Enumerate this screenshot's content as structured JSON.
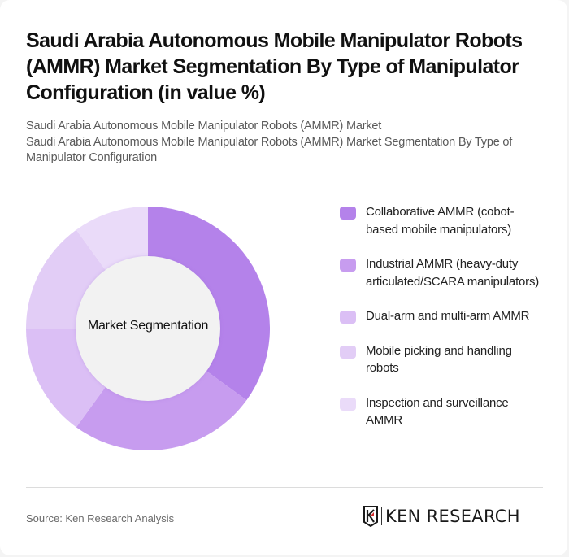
{
  "header": {
    "title": "Saudi Arabia Autonomous Mobile Manipulator Robots (AMMR) Market Segmentation By Type of Manipulator Configuration (in value %)",
    "subtitle_line1": "Saudi Arabia Autonomous Mobile Manipulator Robots (AMMR) Market",
    "subtitle_line2": "Saudi Arabia Autonomous Mobile Manipulator Robots (AMMR) Market Segmentation By Type of Manipulator Configuration"
  },
  "chart_data": {
    "type": "pie",
    "variant": "donut",
    "title": "Saudi Arabia Autonomous Mobile Manipulator Robots (AMMR) Market Segmentation By Type of Manipulator Configuration (in value %)",
    "center_label": "Market Segmentation",
    "categories": [
      "Collaborative AMMR (cobot-based mobile manipulators)",
      "Industrial AMMR (heavy-duty articulated/SCARA manipulators)",
      "Dual-arm and multi-arm AMMR",
      "Mobile picking and handling robots",
      "Inspection and surveillance AMMR"
    ],
    "values": [
      35,
      25,
      15,
      15,
      10
    ],
    "unit": "%",
    "colors": [
      "#b482ea",
      "#c79cef",
      "#dbbff5",
      "#e2cdf6",
      "#eadbf9"
    ],
    "legend_position": "right",
    "start_angle": "12 o'clock, clockwise"
  },
  "legend": {
    "items": [
      {
        "label": "Collaborative AMMR (cobot-based mobile manipulators)",
        "color": "#b482ea"
      },
      {
        "label": "Industrial AMMR (heavy-duty articulated/SCARA manipulators)",
        "color": "#c79cef"
      },
      {
        "label": "Dual-arm and multi-arm AMMR",
        "color": "#dbbff5"
      },
      {
        "label": "Mobile picking and handling robots",
        "color": "#e2cdf6"
      },
      {
        "label": "Inspection and surveillance AMMR",
        "color": "#eadbf9"
      }
    ]
  },
  "footer": {
    "source": "Source: Ken Research Analysis",
    "logo_text": "KEN RESEARCH"
  }
}
